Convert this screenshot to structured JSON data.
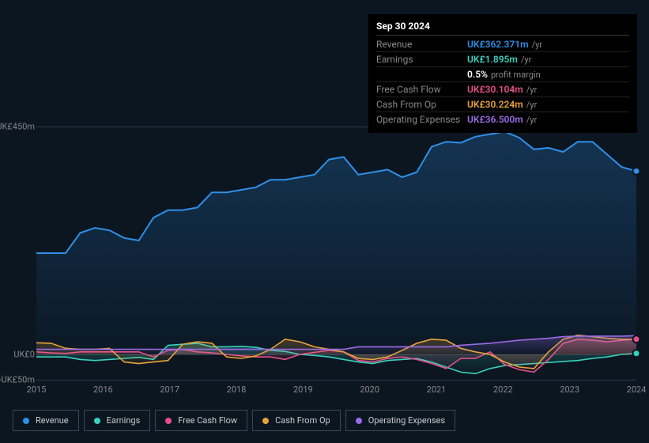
{
  "tooltip": {
    "date": "Sep 30 2024",
    "rows": [
      {
        "label": "Revenue",
        "value": "UK£362.371m",
        "unit": "/yr",
        "color": "#2f8fe8"
      },
      {
        "label": "Earnings",
        "value": "UK£1.895m",
        "unit": "/yr",
        "color": "#3ad1c0"
      },
      {
        "label": "",
        "value": "0.5%",
        "unit": "profit margin",
        "color": "#ffffff"
      },
      {
        "label": "Free Cash Flow",
        "value": "UK£30.104m",
        "unit": "/yr",
        "color": "#e84f8a"
      },
      {
        "label": "Cash From Op",
        "value": "UK£30.224m",
        "unit": "/yr",
        "color": "#e8a33a"
      },
      {
        "label": "Operating Expenses",
        "value": "UK£36.500m",
        "unit": "/yr",
        "color": "#9b6ae8"
      }
    ]
  },
  "chart": {
    "type": "area",
    "background": "#0b1621",
    "grid_color": "#2a3844",
    "x_years": [
      2015,
      2016,
      2017,
      2018,
      2019,
      2020,
      2021,
      2022,
      2023,
      2024
    ],
    "y_ticks": [
      {
        "v": 450,
        "label": "UK£450m"
      },
      {
        "v": 0,
        "label": "UK£0"
      },
      {
        "v": -50,
        "label": "-UK£50m"
      }
    ],
    "ylim": [
      -50,
      450
    ],
    "series": {
      "revenue": {
        "label": "Revenue",
        "color": "#2f8fe8",
        "fill_opacity": 0.25,
        "values": [
          200,
          200,
          200,
          240,
          250,
          245,
          230,
          225,
          270,
          285,
          285,
          290,
          320,
          320,
          325,
          330,
          345,
          345,
          350,
          355,
          385,
          390,
          355,
          360,
          365,
          350,
          360,
          410,
          420,
          418,
          430,
          435,
          440,
          428,
          405,
          408,
          400,
          420,
          420,
          395,
          370,
          362
        ]
      },
      "earnings": {
        "label": "Earnings",
        "color": "#3ad1c0",
        "fill_opacity": 0.25,
        "values": [
          -5,
          -5,
          -5,
          -10,
          -12,
          -10,
          -8,
          -6,
          -10,
          18,
          20,
          22,
          15,
          15,
          16,
          14,
          8,
          6,
          0,
          -2,
          -5,
          -10,
          -15,
          -18,
          -12,
          -10,
          -8,
          -15,
          -25,
          -35,
          -38,
          -28,
          -22,
          -20,
          -18,
          -16,
          -14,
          -12,
          -8,
          -5,
          0,
          2
        ]
      },
      "fcf": {
        "label": "Free Cash Flow",
        "color": "#e84f8a",
        "fill_opacity": 0.25,
        "values": [
          5,
          3,
          2,
          5,
          5,
          5,
          5,
          5,
          -5,
          8,
          10,
          5,
          3,
          0,
          -3,
          -5,
          -5,
          -10,
          0,
          4,
          8,
          5,
          -12,
          -15,
          -8,
          -5,
          -10,
          -18,
          -28,
          -8,
          -8,
          5,
          -20,
          -30,
          -35,
          -10,
          22,
          30,
          28,
          25,
          28,
          30
        ]
      },
      "cfo": {
        "label": "Cash From Op",
        "color": "#e8a33a",
        "fill_opacity": 0.25,
        "values": [
          23,
          22,
          12,
          10,
          10,
          12,
          -15,
          -18,
          -15,
          -12,
          20,
          25,
          22,
          -5,
          -8,
          -3,
          10,
          30,
          25,
          15,
          10,
          5,
          -8,
          -10,
          -5,
          8,
          22,
          30,
          28,
          12,
          5,
          0,
          -15,
          -25,
          -28,
          5,
          30,
          38,
          35,
          32,
          30,
          30
        ]
      },
      "opex": {
        "label": "Operating Expenses",
        "color": "#9b6ae8",
        "fill_opacity": 0.3,
        "values": [
          10,
          10,
          10,
          10,
          10,
          10,
          10,
          10,
          10,
          10,
          10,
          10,
          10,
          10,
          10,
          10,
          10,
          10,
          10,
          10,
          10,
          10,
          15,
          15,
          15,
          15,
          15,
          15,
          15,
          18,
          20,
          22,
          25,
          28,
          30,
          32,
          35,
          36,
          36,
          36,
          36,
          37
        ]
      }
    },
    "legend_order": [
      "revenue",
      "earnings",
      "fcf",
      "cfo",
      "opex"
    ]
  }
}
